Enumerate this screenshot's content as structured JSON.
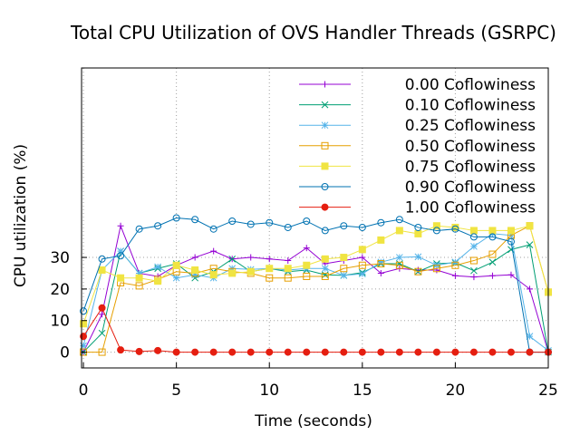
{
  "chart_data": {
    "type": "line",
    "title": "Total CPU Utilization of OVS Handler Threads (GSRPC)",
    "xlabel": "Time (seconds)",
    "ylabel": "CPU utilization (%)",
    "xlim": [
      -0.1,
      25
    ],
    "ylim": [
      -5,
      90
    ],
    "xticks": [
      0,
      5,
      10,
      15,
      20,
      25
    ],
    "yticks": [
      0,
      10,
      20,
      30
    ],
    "grid": true,
    "legend_position": "top-right",
    "x": [
      0,
      1,
      2,
      3,
      4,
      5,
      6,
      7,
      8,
      9,
      10,
      11,
      12,
      13,
      14,
      15,
      16,
      17,
      18,
      19,
      20,
      21,
      22,
      23,
      24,
      25
    ],
    "series": [
      {
        "name": "0.00 Coflowiness",
        "color": "#9400d3",
        "marker": "plus",
        "values": [
          0,
          12,
          40,
          25,
          24,
          27.5,
          30,
          32,
          29.5,
          30,
          29.5,
          29,
          33,
          28,
          29,
          30,
          25,
          26.5,
          26,
          26,
          24.2,
          23.8,
          24.2,
          24.5,
          20,
          0
        ]
      },
      {
        "name": "0.10 Coflowiness",
        "color": "#009e73",
        "marker": "x",
        "values": [
          0,
          6,
          32,
          25,
          26.5,
          28,
          23.5,
          25.5,
          29.5,
          25.5,
          26.5,
          25.5,
          26,
          24.5,
          24.3,
          25.2,
          28,
          28,
          25.5,
          28,
          28.3,
          25.8,
          28.5,
          32.5,
          34,
          0
        ]
      },
      {
        "name": "0.25 Coflowiness",
        "color": "#56b4e9",
        "marker": "star",
        "values": [
          2,
          26,
          32,
          25,
          27,
          23.5,
          24.5,
          23.5,
          26.5,
          26.2,
          26.5,
          26,
          26.5,
          26.5,
          24.3,
          24.8,
          28.5,
          30,
          30.2,
          27.5,
          28.5,
          33.5,
          37.5,
          37,
          5,
          0.5
        ]
      },
      {
        "name": "0.50 Coflowiness",
        "color": "#e69f00",
        "marker": "square-open",
        "values": [
          0,
          0,
          22,
          21,
          23,
          25.5,
          25,
          26.5,
          25.5,
          25,
          23.5,
          23.5,
          24,
          24,
          26.5,
          27.5,
          28,
          27.5,
          25.5,
          26.5,
          27.5,
          29,
          31,
          37,
          40,
          19
        ]
      },
      {
        "name": "0.75 Coflowiness",
        "color": "#f0e442",
        "marker": "square-filled",
        "values": [
          9,
          26,
          23.5,
          23.5,
          22.5,
          27.5,
          26,
          24.5,
          25,
          25.5,
          26.5,
          26.5,
          27.5,
          29.5,
          30,
          32.5,
          35.5,
          38.5,
          37.5,
          40,
          39.5,
          38.5,
          38.5,
          38.5,
          40,
          19
        ]
      },
      {
        "name": "0.90 Coflowiness",
        "color": "#0072b2",
        "marker": "circle-open",
        "values": [
          13,
          29.5,
          30.5,
          39,
          40,
          42.5,
          42,
          39,
          41.5,
          40.5,
          41,
          39.5,
          41.5,
          38.5,
          40,
          39.5,
          41,
          42,
          39.5,
          38.5,
          39,
          36.5,
          36.5,
          35,
          0,
          0
        ]
      },
      {
        "name": "1.00 Coflowiness",
        "color": "#e51e10",
        "marker": "circle-filled",
        "values": [
          5,
          14,
          0.7,
          0.2,
          0.5,
          0,
          0,
          0,
          0,
          0,
          0,
          0,
          0,
          0,
          0,
          0,
          0,
          0,
          0,
          0,
          0,
          0,
          0,
          0,
          0,
          0
        ]
      }
    ]
  }
}
